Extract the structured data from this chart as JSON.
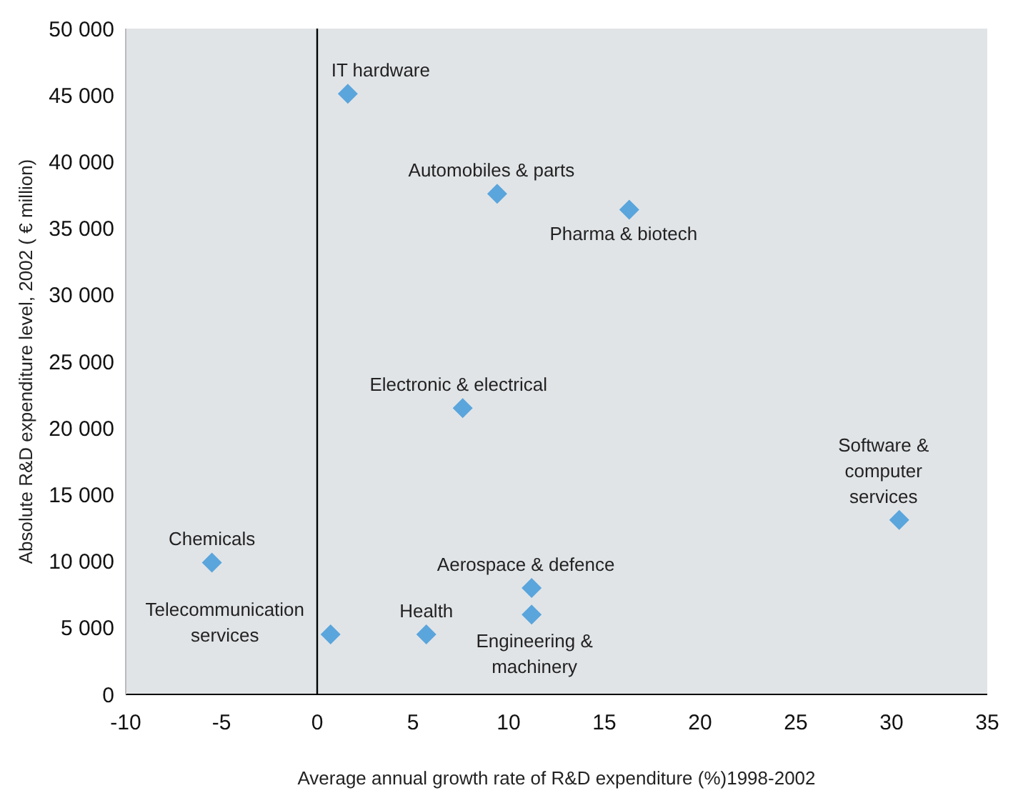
{
  "chart_data": {
    "type": "scatter",
    "xlabel": "Average annual growth rate of R&D expenditure (%)1998-2002",
    "ylabel": "Absolute R&D expenditure level, 2002 ( € million)",
    "x": [
      1.6,
      9.4,
      16.3,
      7.6,
      30.4,
      -5.5,
      11.2,
      11.2,
      0.7,
      5.7
    ],
    "series": [
      {
        "color": "#5aa5dc",
        "values": [
          45100,
          37600,
          36400,
          21500,
          13100,
          9900,
          8000,
          6000,
          4500,
          4500
        ]
      }
    ],
    "marker": "diamond",
    "xlim": [
      -10,
      35
    ],
    "xticks": [
      -10,
      -5,
      0,
      5,
      10,
      15,
      20,
      25,
      30,
      35
    ],
    "ylim": [
      0,
      50000
    ],
    "yticks": [
      {
        "value": 0,
        "label": "0"
      },
      {
        "value": 5000,
        "label": "5 000"
      },
      {
        "value": 10000,
        "label": "10 000"
      },
      {
        "value": 15000,
        "label": "15 000"
      },
      {
        "value": 20000,
        "label": "20 000"
      },
      {
        "value": 25000,
        "label": "25 000"
      },
      {
        "value": 30000,
        "label": "30 000"
      },
      {
        "value": 35000,
        "label": "35 000"
      },
      {
        "value": 40000,
        "label": "40 000"
      },
      {
        "value": 45000,
        "label": "45 000"
      },
      {
        "value": 50000,
        "label": "50 000"
      }
    ],
    "ref_lines": [
      {
        "axis": "x",
        "value": 0,
        "color": "#000000"
      }
    ],
    "annotations": [
      {
        "text": "IT hardware",
        "x": 1.6,
        "y": 45100
      },
      {
        "text": "Automobiles & parts",
        "x": 9.4,
        "y": 37600
      },
      {
        "text": "Pharma & biotech",
        "x": 16.3,
        "y": 36400
      },
      {
        "text": "Electronic & electrical",
        "x": 7.6,
        "y": 21500
      },
      {
        "text": "Software &\ncomputer\nservices",
        "x": 30.4,
        "y": 13100
      },
      {
        "text": "Chemicals",
        "x": -5.5,
        "y": 9900
      },
      {
        "text": "Aerospace & defence",
        "x": 11.2,
        "y": 8000
      },
      {
        "text": "Engineering &\nmachinery",
        "x": 11.2,
        "y": 6000
      },
      {
        "text": "Telecommunication\nservices",
        "x": 0.7,
        "y": 4500
      },
      {
        "text": "Health",
        "x": 5.7,
        "y": 4500
      }
    ]
  }
}
